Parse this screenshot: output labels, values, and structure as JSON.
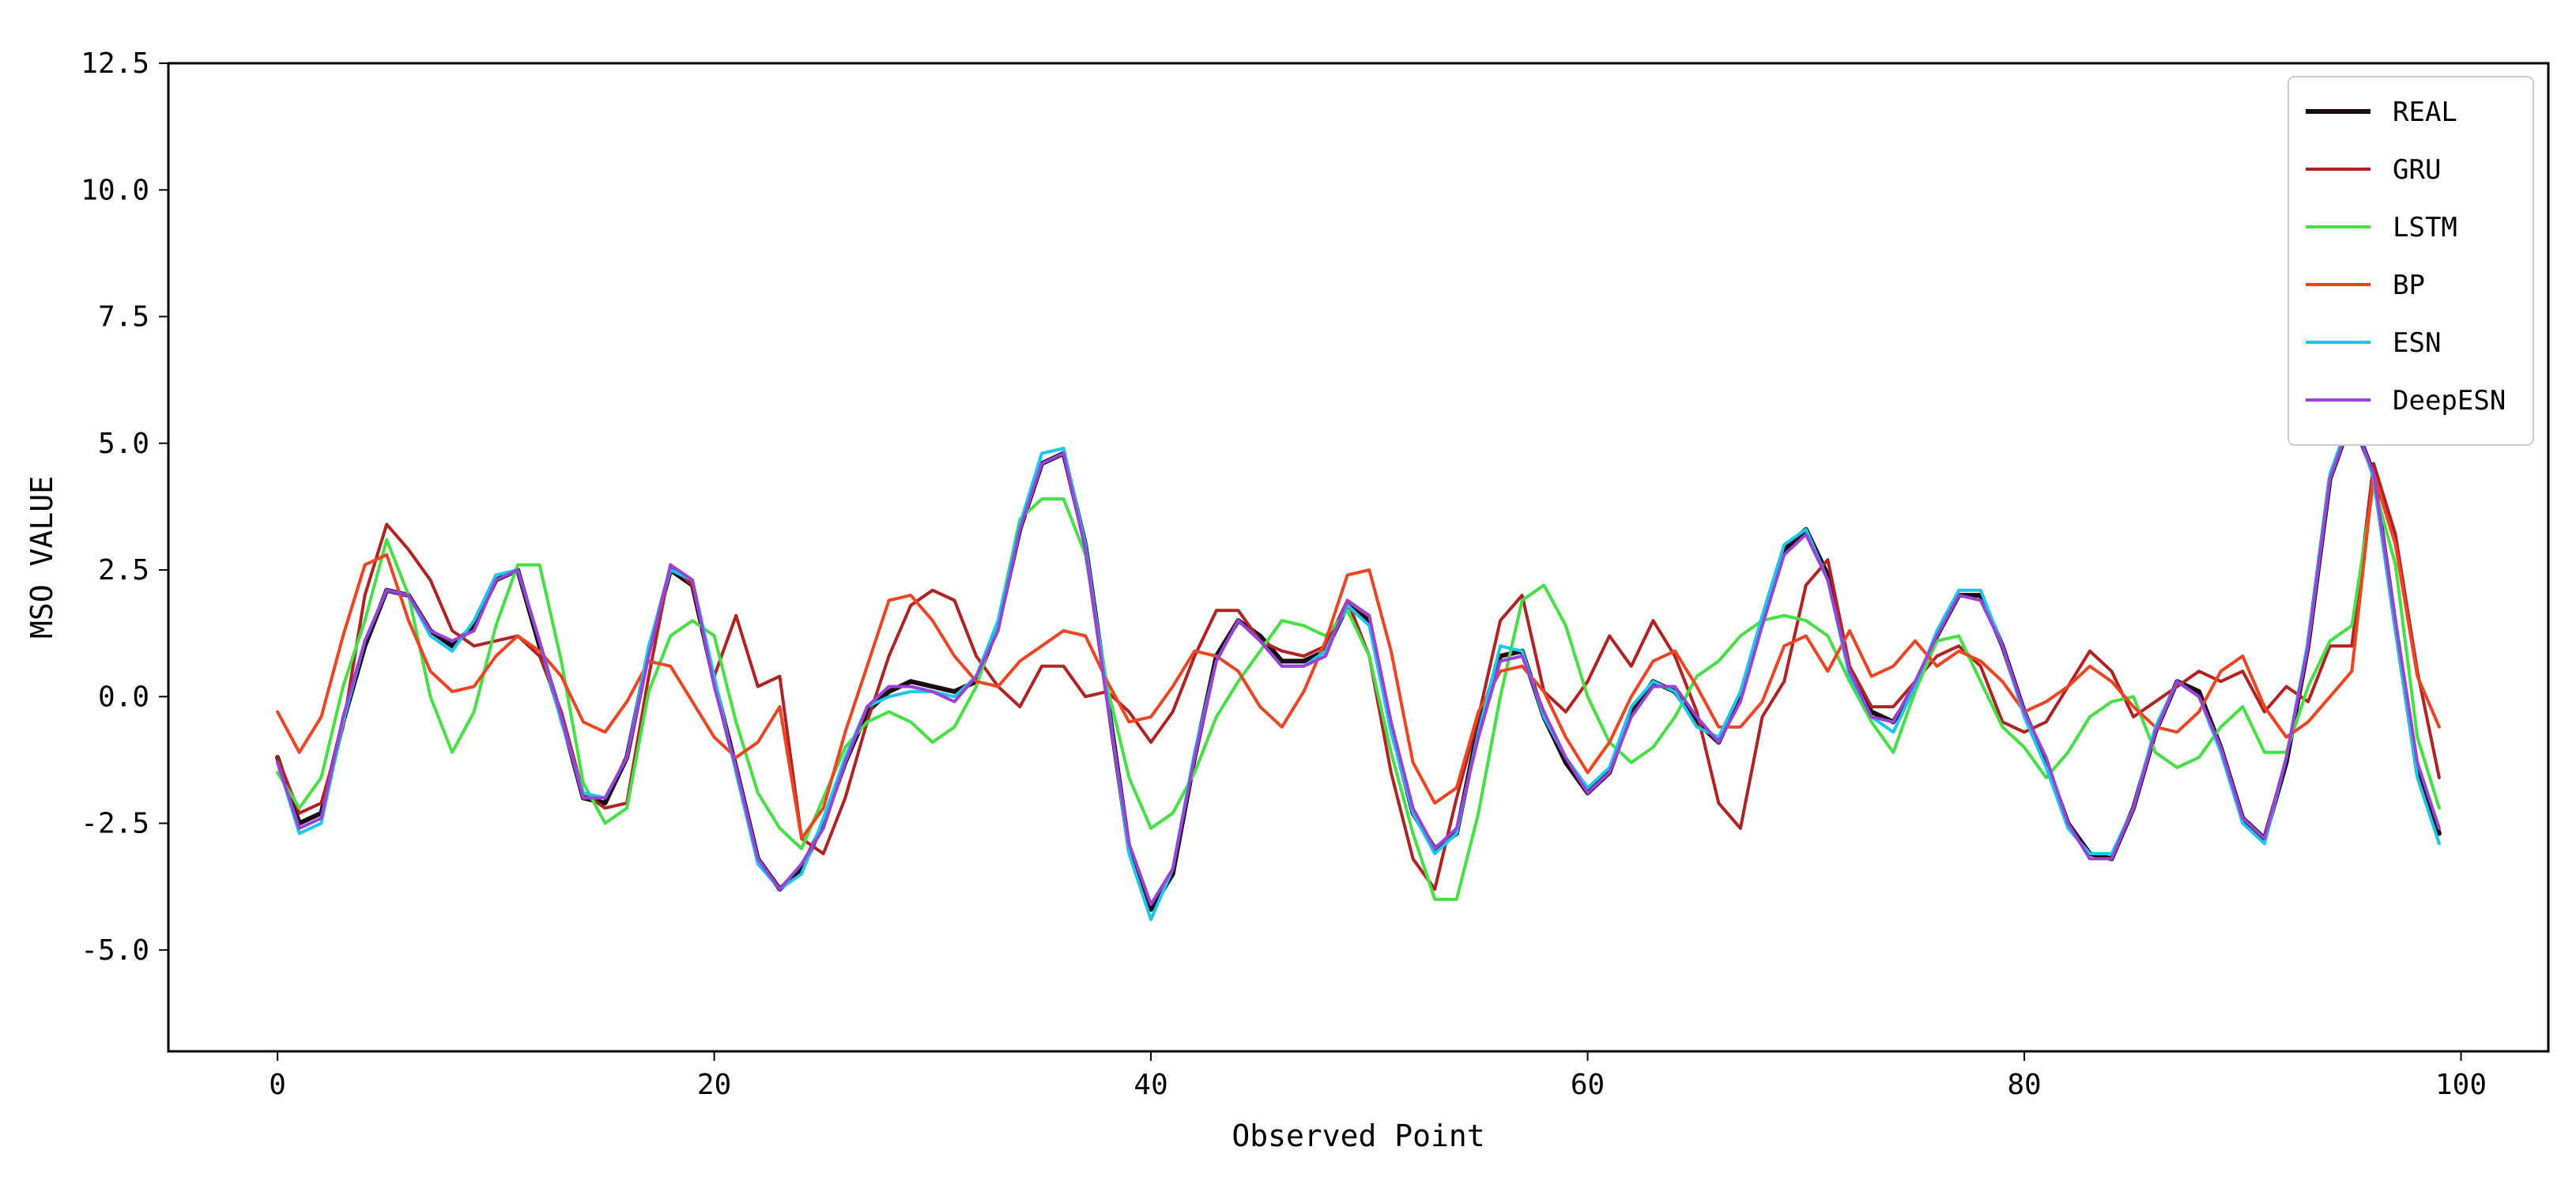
{
  "chart_data": {
    "type": "line",
    "title": "",
    "xlabel": "Observed Point",
    "ylabel": "MSO VALUE",
    "xlim": [
      -5,
      104
    ],
    "ylim": [
      -7.0,
      12.5
    ],
    "xticks": [
      0,
      20,
      40,
      60,
      80,
      100
    ],
    "yticks": [
      -5.0,
      -2.5,
      0.0,
      2.5,
      5.0,
      7.5,
      10.0,
      12.5
    ],
    "xtick_labels": [
      "0",
      "20",
      "40",
      "60",
      "80",
      "100"
    ],
    "ytick_labels": [
      "-5.0",
      "-2.5",
      "0.0",
      "2.5",
      "5.0",
      "7.5",
      "10.0",
      "12.5"
    ],
    "grid": false,
    "legend_position": "top-right",
    "x_start": 0,
    "x_step": 1,
    "series": [
      {
        "name": "REAL",
        "color": "#1a0a14",
        "values": [
          -1.2,
          -2.5,
          -2.3,
          -0.5,
          1.0,
          2.1,
          2.0,
          1.3,
          1.0,
          1.4,
          2.3,
          2.5,
          1.0,
          -0.4,
          -2.0,
          -2.1,
          -1.2,
          0.9,
          2.5,
          2.2,
          0.3,
          -1.4,
          -3.2,
          -3.8,
          -3.4,
          -2.5,
          -1.3,
          -0.3,
          0.1,
          0.3,
          0.2,
          0.1,
          0.3,
          1.4,
          3.3,
          4.6,
          4.8,
          3.0,
          0.0,
          -3.0,
          -4.2,
          -3.5,
          -1.2,
          0.8,
          1.5,
          1.2,
          0.7,
          0.7,
          0.9,
          1.8,
          1.5,
          -0.6,
          -2.3,
          -3.0,
          -2.7,
          -0.6,
          0.8,
          0.9,
          -0.4,
          -1.3,
          -1.9,
          -1.5,
          -0.3,
          0.3,
          0.1,
          -0.5,
          -0.9,
          0.0,
          1.5,
          2.9,
          3.3,
          2.4,
          0.5,
          -0.3,
          -0.5,
          0.2,
          1.2,
          2.0,
          2.0,
          1.0,
          -0.3,
          -1.3,
          -2.5,
          -3.1,
          -3.2,
          -2.2,
          -0.7,
          0.3,
          0.1,
          -1.0,
          -2.4,
          -2.8,
          -1.3,
          1.0,
          4.3,
          5.5,
          4.4,
          1.4,
          -1.5,
          -2.7
        ]
      },
      {
        "name": "GRU",
        "color": "#b22222",
        "values": [
          -1.2,
          -2.3,
          -2.1,
          -0.6,
          2.0,
          3.4,
          2.9,
          2.3,
          1.3,
          1.0,
          1.1,
          1.2,
          0.8,
          -0.3,
          -1.9,
          -2.2,
          -2.1,
          0.4,
          2.6,
          2.2,
          0.4,
          1.6,
          0.2,
          0.4,
          -2.8,
          -3.1,
          -2.0,
          -0.5,
          0.8,
          1.8,
          2.1,
          1.9,
          0.8,
          0.2,
          -0.2,
          0.6,
          0.6,
          0.0,
          0.1,
          -0.3,
          -0.9,
          -0.3,
          0.8,
          1.7,
          1.7,
          1.1,
          0.9,
          0.8,
          1.0,
          1.9,
          0.8,
          -1.5,
          -3.2,
          -3.8,
          -2.0,
          -0.4,
          1.5,
          2.0,
          0.1,
          -0.3,
          0.3,
          1.2,
          0.6,
          1.5,
          0.8,
          -0.3,
          -2.1,
          -2.6,
          -0.4,
          0.3,
          2.2,
          2.7,
          0.6,
          -0.2,
          -0.2,
          0.3,
          0.8,
          1.0,
          0.6,
          -0.5,
          -0.7,
          -0.5,
          0.2,
          0.9,
          0.5,
          -0.4,
          -0.1,
          0.2,
          0.5,
          0.3,
          0.5,
          -0.3,
          0.2,
          -0.1,
          1.0,
          1.0,
          4.6,
          3.2,
          0.5,
          -1.6
        ]
      },
      {
        "name": "LSTM",
        "color": "#44e044",
        "values": [
          -1.5,
          -2.2,
          -1.6,
          0.2,
          1.5,
          3.1,
          2.0,
          0.0,
          -1.1,
          -0.3,
          1.4,
          2.6,
          2.6,
          0.7,
          -1.7,
          -2.5,
          -2.2,
          0.1,
          1.2,
          1.5,
          1.2,
          -0.5,
          -1.9,
          -2.6,
          -3.0,
          -2.0,
          -1.0,
          -0.5,
          -0.3,
          -0.5,
          -0.9,
          -0.6,
          0.2,
          1.5,
          3.5,
          3.9,
          3.9,
          2.8,
          0.2,
          -1.6,
          -2.6,
          -2.3,
          -1.5,
          -0.4,
          0.3,
          0.9,
          1.5,
          1.4,
          1.2,
          1.7,
          0.8,
          -1.1,
          -2.7,
          -4.0,
          -4.0,
          -2.3,
          0.0,
          1.9,
          2.2,
          1.4,
          0.0,
          -0.9,
          -1.3,
          -1.0,
          -0.4,
          0.4,
          0.7,
          1.2,
          1.5,
          1.6,
          1.5,
          1.2,
          0.3,
          -0.5,
          -1.1,
          0.1,
          1.1,
          1.2,
          0.3,
          -0.6,
          -1.0,
          -1.6,
          -1.1,
          -0.4,
          -0.1,
          0.0,
          -1.1,
          -1.4,
          -1.2,
          -0.6,
          -0.2,
          -1.1,
          -1.1,
          0.2,
          1.1,
          1.4,
          4.2,
          2.6,
          -0.8,
          -2.2
        ]
      },
      {
        "name": "BP",
        "color": "#ee4422",
        "values": [
          -0.3,
          -1.1,
          -0.4,
          1.2,
          2.6,
          2.8,
          1.5,
          0.5,
          0.1,
          0.2,
          0.8,
          1.2,
          0.9,
          0.4,
          -0.5,
          -0.7,
          -0.1,
          0.7,
          0.6,
          -0.1,
          -0.8,
          -1.2,
          -0.9,
          -0.2,
          -2.8,
          -2.2,
          -0.7,
          0.6,
          1.9,
          2.0,
          1.5,
          0.8,
          0.3,
          0.2,
          0.7,
          1.0,
          1.3,
          1.2,
          0.3,
          -0.5,
          -0.4,
          0.2,
          0.9,
          0.8,
          0.5,
          -0.2,
          -0.6,
          0.1,
          1.1,
          2.4,
          2.5,
          0.9,
          -1.3,
          -2.1,
          -1.8,
          -0.3,
          0.5,
          0.6,
          0.1,
          -0.8,
          -1.5,
          -0.9,
          0.0,
          0.7,
          0.9,
          0.2,
          -0.6,
          -0.6,
          -0.1,
          1.0,
          1.2,
          0.5,
          1.3,
          0.4,
          0.6,
          1.1,
          0.6,
          0.9,
          0.7,
          0.3,
          -0.3,
          -0.1,
          0.2,
          0.6,
          0.3,
          -0.2,
          -0.6,
          -0.7,
          -0.3,
          0.5,
          0.8,
          -0.2,
          -0.8,
          -0.5,
          0.0,
          0.5,
          4.4,
          3.0,
          0.4,
          -0.6
        ]
      },
      {
        "name": "ESN",
        "color": "#18c8e8",
        "values": [
          -1.3,
          -2.7,
          -2.5,
          -0.5,
          1.1,
          2.1,
          2.0,
          1.2,
          0.9,
          1.5,
          2.4,
          2.5,
          1.1,
          -0.5,
          -1.9,
          -2.0,
          -1.2,
          1.0,
          2.5,
          2.3,
          0.4,
          -1.5,
          -3.3,
          -3.8,
          -3.5,
          -2.4,
          -1.2,
          -0.2,
          0.0,
          0.1,
          0.1,
          0.0,
          0.4,
          1.5,
          3.4,
          4.8,
          4.9,
          3.0,
          0.0,
          -3.1,
          -4.4,
          -3.4,
          -1.1,
          0.7,
          1.5,
          1.1,
          0.6,
          0.6,
          0.9,
          1.8,
          1.4,
          -0.7,
          -2.3,
          -3.1,
          -2.7,
          -0.7,
          1.0,
          0.9,
          -0.4,
          -1.2,
          -1.8,
          -1.4,
          -0.2,
          0.3,
          0.1,
          -0.6,
          -0.8,
          0.1,
          1.6,
          3.0,
          3.3,
          2.3,
          0.4,
          -0.4,
          -0.7,
          0.2,
          1.3,
          2.1,
          2.1,
          1.0,
          -0.4,
          -1.4,
          -2.6,
          -3.1,
          -3.1,
          -2.2,
          -0.6,
          0.3,
          0.0,
          -1.1,
          -2.5,
          -2.9,
          -1.2,
          1.1,
          4.4,
          5.6,
          4.3,
          1.3,
          -1.6,
          -2.9
        ]
      },
      {
        "name": "DeepESN",
        "color": "#9a42d8",
        "values": [
          -1.3,
          -2.6,
          -2.4,
          -0.4,
          1.1,
          2.1,
          2.0,
          1.3,
          1.1,
          1.3,
          2.3,
          2.5,
          1.1,
          -0.4,
          -2.0,
          -2.0,
          -1.2,
          0.8,
          2.6,
          2.3,
          0.2,
          -1.4,
          -3.2,
          -3.8,
          -3.3,
          -2.6,
          -1.3,
          -0.2,
          0.2,
          0.2,
          0.1,
          -0.1,
          0.4,
          1.3,
          3.3,
          4.6,
          4.8,
          2.9,
          -0.1,
          -2.9,
          -4.1,
          -3.4,
          -1.2,
          0.7,
          1.5,
          1.1,
          0.6,
          0.6,
          0.8,
          1.9,
          1.6,
          -0.5,
          -2.2,
          -3.0,
          -2.6,
          -0.8,
          0.7,
          0.8,
          -0.3,
          -1.2,
          -1.9,
          -1.5,
          -0.4,
          0.2,
          0.2,
          -0.4,
          -0.9,
          -0.1,
          1.4,
          2.8,
          3.2,
          2.3,
          0.5,
          -0.4,
          -0.5,
          0.3,
          1.2,
          2.0,
          1.9,
          1.0,
          -0.3,
          -1.2,
          -2.5,
          -3.2,
          -3.2,
          -2.2,
          -0.7,
          0.3,
          0.0,
          -1.0,
          -2.4,
          -2.8,
          -1.2,
          1.0,
          4.3,
          5.5,
          4.4,
          1.5,
          -1.3,
          -2.6
        ]
      }
    ]
  }
}
